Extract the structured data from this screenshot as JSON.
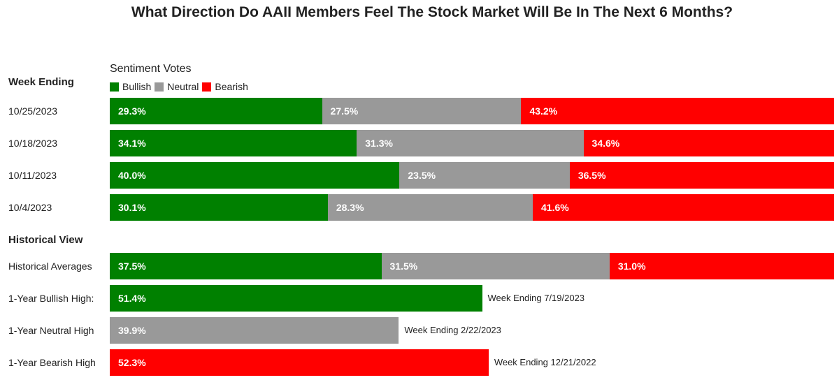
{
  "title": "What Direction Do AAII Members Feel The Stock Market Will Be In The Next 6 Months?",
  "legend": {
    "title": "Sentiment Votes",
    "items": [
      {
        "label": "Bullish",
        "color": "#008000"
      },
      {
        "label": "Neutral",
        "color": "#999999"
      },
      {
        "label": "Bearish",
        "color": "#ff0000"
      }
    ]
  },
  "sections": {
    "weekly_heading": "Week Ending",
    "historical_heading": "Historical View"
  },
  "chart_data": {
    "type": "bar",
    "stacked": true,
    "orientation": "horizontal",
    "title": "What Direction Do AAII Members Feel The Stock Market Will Be In The Next 6 Months?",
    "categories": [
      "10/25/2023",
      "10/18/2023",
      "10/11/2023",
      "10/4/2023",
      "Historical Averages"
    ],
    "series": [
      {
        "name": "Bullish",
        "color": "#008000",
        "values": [
          29.3,
          34.1,
          40.0,
          30.1,
          37.5
        ],
        "labels": [
          "29.3%",
          "34.1%",
          "40.0%",
          "30.1%",
          "37.5%"
        ]
      },
      {
        "name": "Neutral",
        "color": "#999999",
        "values": [
          27.5,
          31.3,
          23.5,
          28.3,
          31.5
        ],
        "labels": [
          "27.5%",
          "31.3%",
          "23.5%",
          "28.3%",
          "31.5%"
        ]
      },
      {
        "name": "Bearish",
        "color": "#ff0000",
        "values": [
          43.2,
          34.6,
          36.5,
          41.6,
          31.0
        ],
        "labels": [
          "43.2%",
          "34.6%",
          "36.5%",
          "41.6%",
          "31.0%"
        ]
      }
    ],
    "extremes": [
      {
        "label": "1-Year Bullish High:",
        "value": 51.4,
        "value_label": "51.4%",
        "color": "#008000",
        "note": "Week Ending 7/19/2023"
      },
      {
        "label": "1-Year Neutral High",
        "value": 39.9,
        "value_label": "39.9%",
        "color": "#999999",
        "note": "Week Ending 2/22/2023"
      },
      {
        "label": "1-Year Bearish High",
        "value": 52.3,
        "value_label": "52.3%",
        "color": "#ff0000",
        "note": "Week Ending 12/21/2022"
      }
    ],
    "xlim": [
      0,
      100
    ],
    "legend_position": "top-left",
    "grid": false
  }
}
